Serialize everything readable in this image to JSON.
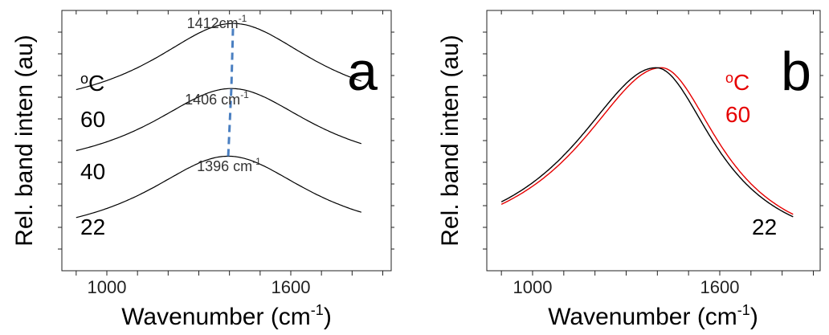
{
  "chart_data": [
    {
      "type": "line",
      "panel_label": "a",
      "xlabel": "Wavenumber (cm",
      "xlabel_sup": "-1",
      "xlabel_end": ")",
      "ylabel": "Rel. band inten (au)",
      "x_ticks": [
        "1000",
        "1600"
      ],
      "xlim": [
        700,
        1950
      ],
      "unit_label": "oC",
      "series": [
        {
          "name": "60",
          "peak": 1412,
          "peak_label": "1412cm",
          "baseline": 0.59,
          "height": 0.36
        },
        {
          "name": "40",
          "peak": 1406,
          "peak_label": "1406 cm",
          "baseline": 0.36,
          "height": 0.34
        },
        {
          "name": "22",
          "peak": 1396,
          "peak_label": "1396 cm",
          "baseline": 0.1,
          "height": 0.34
        }
      ],
      "peak_label_sup": "-1",
      "peak_trend_line": {
        "style": "dashed",
        "color": "#4a7fc1"
      }
    },
    {
      "type": "line",
      "panel_label": "b",
      "xlabel": "Wavenumber (cm",
      "xlabel_sup": "-1",
      "xlabel_end": ")",
      "ylabel": "Rel. band inten (au)",
      "x_ticks": [
        "1000",
        "1600"
      ],
      "xlim": [
        700,
        1950
      ],
      "unit_label": "oC",
      "series": [
        {
          "name": "60",
          "color": "#e60000",
          "peak": 1412
        },
        {
          "name": "22",
          "color": "#000000",
          "peak": 1396
        }
      ]
    }
  ]
}
